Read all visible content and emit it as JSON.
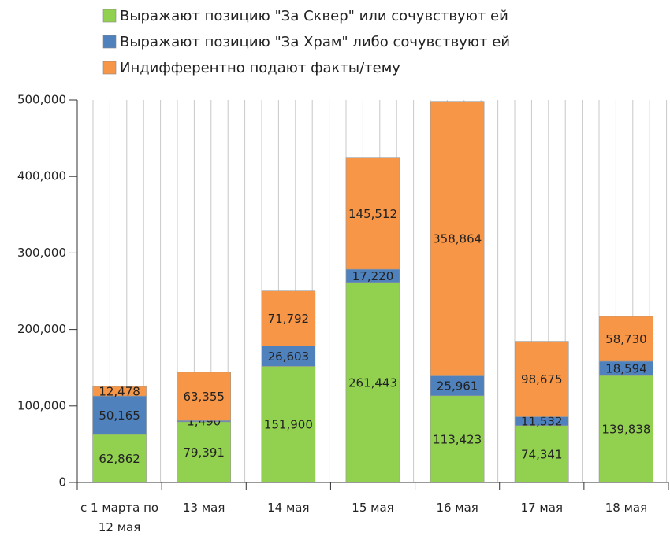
{
  "chart_data": {
    "type": "stacked_bar",
    "categories": [
      "с 1 марта по 12 мая",
      "13 мая",
      "14 мая",
      "15 мая",
      "16 мая",
      "17 мая",
      "18 мая"
    ],
    "series": [
      {
        "name": "Выражают позицию \"За Сквер\" или сочувствуют ей",
        "color": "#92d050",
        "values": [
          62862,
          79391,
          151900,
          261443,
          113423,
          74341,
          139838
        ],
        "value_labels": [
          "62,862",
          "79,391",
          "151,900",
          "261,443",
          "113,423",
          "74,341",
          "139,838"
        ]
      },
      {
        "name": "Выражают позицию \"За Храм\" либо сочувствуют ей",
        "color": "#4f81bd",
        "values": [
          50165,
          1490,
          26603,
          17220,
          25961,
          11532,
          18594
        ],
        "value_labels": [
          "50,165",
          "1,490",
          "26,603",
          "17,220",
          "25,961",
          "11,532",
          "18,594"
        ]
      },
      {
        "name": "Индифферентно подают факты/тему",
        "color": "#f79646",
        "values": [
          12478,
          63355,
          71792,
          145512,
          358864,
          98675,
          58730
        ],
        "value_labels": [
          "12,478",
          "63,355",
          "71,792",
          "145,512",
          "358,864",
          "98,675",
          "58,730"
        ]
      }
    ],
    "ylim": [
      0,
      500000
    ],
    "yticks": [
      0,
      {
        "value": 100000,
        "label": "100,000"
      },
      {
        "value": 200000,
        "label": "200,000"
      },
      {
        "value": 300000,
        "label": "300,000"
      },
      {
        "value": 400000,
        "label": "400,000"
      },
      {
        "value": 500000,
        "label": "500,000"
      }
    ],
    "legend": "top"
  }
}
